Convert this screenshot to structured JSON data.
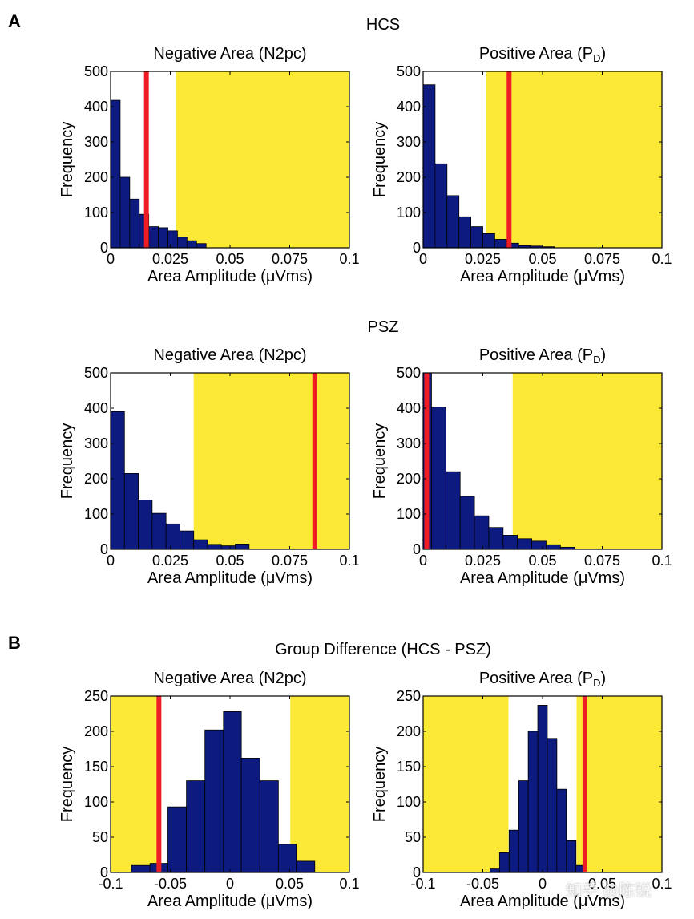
{
  "figure": {
    "panel_a_label": "A",
    "panel_b_label": "B",
    "group_titles": [
      "HCS",
      "PSZ",
      "Group Difference (HCS - PSZ)"
    ],
    "colors": {
      "bar": "#0d1a80",
      "region": "#fbe936",
      "marker": "#ee1c24"
    },
    "watermark": "知乎 @陈锐"
  },
  "chart_data": [
    {
      "type": "bar",
      "group": "HCS",
      "title": "Negative Area (N2pc)",
      "title_sub": "",
      "xlabel": "Area Amplitude (μVms)",
      "ylabel": "Frequency",
      "xlim": [
        0,
        0.1
      ],
      "ylim": [
        0,
        500
      ],
      "xticks": [
        0,
        0.025,
        0.05,
        0.075,
        0.1
      ],
      "xtick_labels": [
        "0",
        "0.025",
        "0.05",
        "0.075",
        "0.1"
      ],
      "yticks": [
        0,
        100,
        200,
        300,
        400,
        500
      ],
      "ytick_labels": [
        "0",
        "100",
        "200",
        "300",
        "400",
        "500"
      ],
      "bin_edges": [
        0,
        0.004,
        0.008,
        0.012,
        0.016,
        0.02,
        0.024,
        0.028,
        0.032,
        0.036,
        0.04
      ],
      "values": [
        418,
        200,
        138,
        95,
        60,
        57,
        48,
        30,
        20,
        12
      ],
      "shaded_region": [
        0.0275,
        0.1
      ],
      "marker_x": 0.015
    },
    {
      "type": "bar",
      "group": "HCS",
      "title": "Positive Area (P",
      "title_sub": "D",
      "xlabel": "Area Amplitude (μVms)",
      "ylabel": "Frequency",
      "xlim": [
        0,
        0.1
      ],
      "ylim": [
        0,
        500
      ],
      "xticks": [
        0,
        0.025,
        0.05,
        0.075,
        0.1
      ],
      "xtick_labels": [
        "0",
        "0.025",
        "0.05",
        "0.075",
        "0.1"
      ],
      "yticks": [
        0,
        100,
        200,
        300,
        400,
        500
      ],
      "ytick_labels": [
        "0",
        "100",
        "200",
        "300",
        "400",
        "500"
      ],
      "bin_edges": [
        0,
        0.005,
        0.01,
        0.015,
        0.02,
        0.025,
        0.03,
        0.035,
        0.04,
        0.045,
        0.05,
        0.055
      ],
      "values": [
        462,
        238,
        148,
        88,
        60,
        40,
        24,
        13,
        6,
        5,
        3
      ],
      "shaded_region": [
        0.0265,
        0.1
      ],
      "marker_x": 0.036
    },
    {
      "type": "bar",
      "group": "PSZ",
      "title": "Negative Area (N2pc)",
      "title_sub": "",
      "xlabel": "Area Amplitude (μVms)",
      "ylabel": "Frequency",
      "xlim": [
        0,
        0.1
      ],
      "ylim": [
        0,
        500
      ],
      "xticks": [
        0,
        0.025,
        0.05,
        0.075,
        0.1
      ],
      "xtick_labels": [
        "0",
        "0.025",
        "0.05",
        "0.075",
        "0.1"
      ],
      "yticks": [
        0,
        100,
        200,
        300,
        400,
        500
      ],
      "ytick_labels": [
        "0",
        "100",
        "200",
        "300",
        "400",
        "500"
      ],
      "bin_edges": [
        0,
        0.0058,
        0.0116,
        0.0174,
        0.0232,
        0.029,
        0.0348,
        0.0406,
        0.0464,
        0.0522,
        0.058
      ],
      "values": [
        390,
        215,
        140,
        102,
        72,
        52,
        27,
        14,
        10,
        15
      ],
      "shaded_region": [
        0.0348,
        0.1
      ],
      "marker_x": 0.0855
    },
    {
      "type": "bar",
      "group": "PSZ",
      "title": "Positive Area (P",
      "title_sub": "D",
      "xlabel": "Area Amplitude (μVms)",
      "ylabel": "Frequency",
      "xlim": [
        0,
        0.1
      ],
      "ylim": [
        0,
        500
      ],
      "xticks": [
        0,
        0.025,
        0.05,
        0.075,
        0.1
      ],
      "xtick_labels": [
        "0",
        "0.025",
        "0.05",
        "0.075",
        "0.1"
      ],
      "yticks": [
        0,
        100,
        200,
        300,
        400,
        500
      ],
      "ytick_labels": [
        "0",
        "100",
        "200",
        "300",
        "400",
        "500"
      ],
      "bin_edges": [
        0,
        0.0035,
        0.0095,
        0.0155,
        0.0215,
        0.0275,
        0.0335,
        0.0395,
        0.0455,
        0.0515,
        0.0575,
        0.0635
      ],
      "values": [
        500,
        403,
        220,
        150,
        95,
        62,
        40,
        30,
        23,
        13,
        6
      ],
      "shaded_region": [
        0.0375,
        0.1
      ],
      "marker_x": 0.0015
    },
    {
      "type": "bar",
      "group": "Group Difference (HCS - PSZ)",
      "title": "Negative Area (N2pc)",
      "title_sub": "",
      "xlabel": "Area Amplitude (μVms)",
      "ylabel": "Frequency",
      "xlim": [
        -0.1,
        0.1
      ],
      "ylim": [
        0,
        250
      ],
      "xticks": [
        -0.1,
        -0.05,
        0,
        0.05,
        0.1
      ],
      "xtick_labels": [
        "-0.1",
        "-0.05",
        "0",
        "0.05",
        "0.1"
      ],
      "yticks": [
        0,
        50,
        100,
        150,
        200,
        250
      ],
      "ytick_labels": [
        "0",
        "50",
        "100",
        "150",
        "200",
        "250"
      ],
      "bin_edges": [
        -0.1,
        -0.0825,
        -0.067,
        -0.052,
        -0.0365,
        -0.021,
        -0.0055,
        0.0095,
        0.025,
        0.0405,
        0.0555,
        0.071
      ],
      "values": [
        0,
        10,
        13,
        93,
        130,
        202,
        228,
        162,
        130,
        40,
        16
      ],
      "shaded_region": [
        -0.1,
        -0.0585
      ],
      "shaded_region_2": [
        0.0505,
        0.1
      ],
      "marker_x": -0.0595
    },
    {
      "type": "bar",
      "group": "Group Difference (HCS - PSZ)",
      "title": "Positive Area (P",
      "title_sub": "D",
      "xlabel": "Area Amplitude (μVms)",
      "ylabel": "Frequency",
      "xlim": [
        -0.1,
        0.1
      ],
      "ylim": [
        0,
        250
      ],
      "xticks": [
        -0.1,
        -0.05,
        0,
        0.05,
        0.1
      ],
      "xtick_labels": [
        "-0.1",
        "-0.05",
        "0",
        "0.05",
        "0.1"
      ],
      "yticks": [
        0,
        50,
        100,
        150,
        200,
        250
      ],
      "ytick_labels": [
        "0",
        "50",
        "100",
        "150",
        "200",
        "250"
      ],
      "bin_edges": [
        -0.044,
        -0.036,
        -0.028,
        -0.02,
        -0.012,
        -0.004,
        0.004,
        0.012,
        0.02,
        0.028,
        0.036
      ],
      "values": [
        5,
        28,
        60,
        130,
        200,
        237,
        190,
        118,
        45,
        10
      ],
      "shaded_region": [
        -0.1,
        -0.0285
      ],
      "shaded_region_2": [
        0.0285,
        0.1
      ],
      "marker_x": 0.0355
    }
  ]
}
